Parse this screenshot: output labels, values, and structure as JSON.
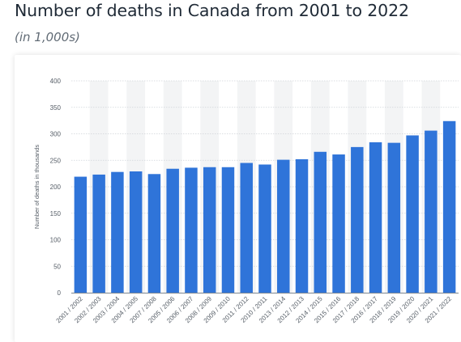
{
  "header": {
    "title": "Number of deaths in Canada from 2001 to 2022",
    "subtitle": "(in 1,000s)"
  },
  "colors": {
    "bar": "#2f74d9",
    "band": "#f3f4f5",
    "gridline": "#cfd4d9",
    "axis": "#7d8791",
    "text": "#555d66"
  },
  "chart_data": {
    "type": "bar",
    "title": "Number of deaths in Canada from 2001 to 2022",
    "subtitle": "(in 1,000s)",
    "xlabel": "",
    "ylabel": "Number of deaths in thousands",
    "ylim": [
      0,
      400
    ],
    "yticks": [
      0,
      50,
      100,
      150,
      200,
      250,
      300,
      350,
      400
    ],
    "grid": "horizontal dashed gridlines, alternating vertical bands",
    "categories": [
      "2001 / 2002",
      "2002 / 2003",
      "2003 / 2004",
      "2004 / 2005",
      "2007 / 2008",
      "2005 / 2006",
      "2006 / 2007",
      "2008 / 2009",
      "2009 / 2010",
      "2011 / 2012",
      "2010 / 2011",
      "2013 / 2014",
      "2012 / 2013",
      "2014 / 2015",
      "2015 / 2016",
      "2017 / 2018",
      "2016 / 2017",
      "2018 / 2019",
      "2019 / 2020",
      "2020 / 2021",
      "2021 / 2022"
    ],
    "values": [
      219,
      223,
      228,
      229,
      224,
      234,
      236,
      237,
      237,
      245,
      242,
      251,
      252,
      266,
      261,
      275,
      284,
      283,
      297,
      306,
      324
    ]
  }
}
